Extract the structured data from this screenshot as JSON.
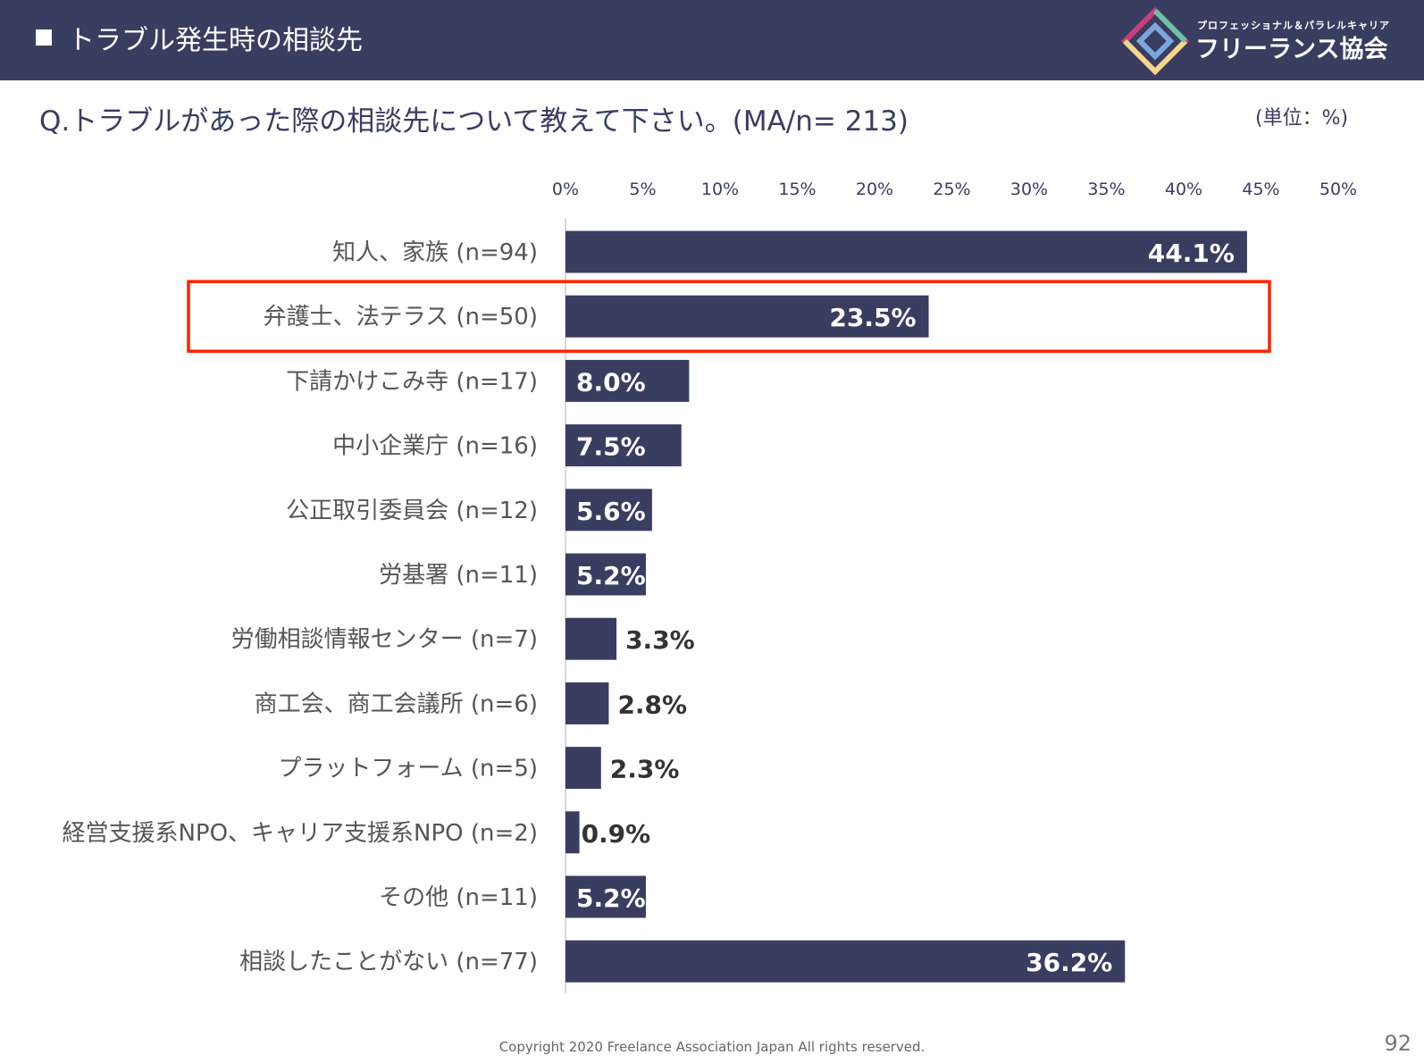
{
  "header": {
    "title": "トラブル発生時の相談先",
    "logo_small": "プロフェッショナル＆パラレルキャリア",
    "logo_big": "フリーランス協会"
  },
  "question": "Q.トラブルがあった際の相談先について教えて下さい。(MA/n= 213)",
  "unit": "(単位：%)",
  "footer": "Copyright 2020 Freelance Association Japan  All rights reserved.",
  "page_number": "92",
  "colors": {
    "bar": "#393d60",
    "highlight": "#ff2200",
    "header": "#393d60"
  },
  "chart_data": {
    "type": "bar",
    "orientation": "horizontal",
    "title": "Q.トラブルがあった際の相談先について教えて下さい。(MA/n= 213)",
    "xlim": [
      0,
      50
    ],
    "x_ticks": [
      "0%",
      "5%",
      "10%",
      "15%",
      "20%",
      "25%",
      "30%",
      "35%",
      "40%",
      "45%",
      "50%"
    ],
    "categories": [
      "知人、家族 (n=94)",
      "弁護士、法テラス (n=50)",
      "下請かけこみ寺 (n=17)",
      "中小企業庁 (n=16)",
      "公正取引委員会 (n=12)",
      "労基署 (n=11)",
      "労働相談情報センター (n=7)",
      "商工会、商工会議所 (n=6)",
      "プラットフォーム (n=5)",
      "経営支援系NPO、キャリア支援系NPO (n=2)",
      "その他 (n=11)",
      "相談したことがない (n=77)"
    ],
    "values": [
      44.1,
      23.5,
      8.0,
      7.5,
      5.6,
      5.2,
      3.3,
      2.8,
      2.3,
      0.9,
      5.2,
      36.2
    ],
    "labels": [
      "44.1%",
      "23.5%",
      "8.0%",
      "7.5%",
      "5.6%",
      "5.2%",
      "3.3%",
      "2.8%",
      "2.3%",
      "0.9%",
      "5.2%",
      "36.2%"
    ],
    "highlighted_index": 1
  }
}
